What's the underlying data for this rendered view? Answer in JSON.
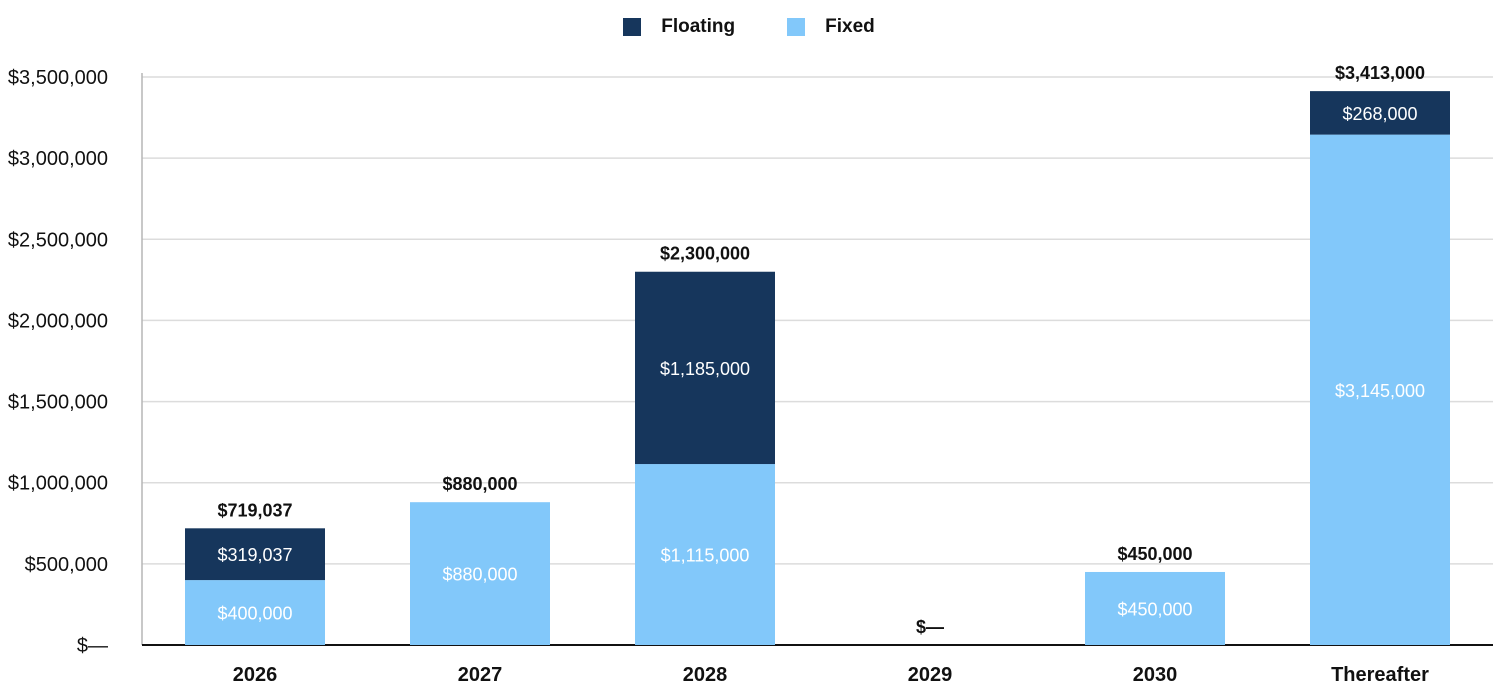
{
  "chart_data": {
    "type": "bar",
    "stacked": true,
    "categories": [
      "2026",
      "2027",
      "2028",
      "2029",
      "2030",
      "Thereafter"
    ],
    "series": [
      {
        "name": "Fixed",
        "color": "#82C8FA",
        "values": [
          400000,
          880000,
          1115000,
          0,
          450000,
          3145000
        ],
        "labels": [
          "$400,000",
          "$880,000",
          "$1,115,000",
          "",
          "$450,000",
          "$3,145,000"
        ]
      },
      {
        "name": "Floating",
        "color": "#16365C",
        "values": [
          319037,
          0,
          1185000,
          0,
          0,
          268000
        ],
        "labels": [
          "$319,037",
          "",
          "$1,185,000",
          "",
          "",
          "$268,000"
        ]
      }
    ],
    "totals": [
      719037,
      880000,
      2300000,
      0,
      450000,
      3413000
    ],
    "total_labels": [
      "$719,037",
      "$880,000",
      "$2,300,000",
      "$—",
      "$450,000",
      "$3,413,000"
    ],
    "ylim": [
      0,
      3500000
    ],
    "yticks": [
      0,
      500000,
      1000000,
      1500000,
      2000000,
      2500000,
      3000000,
      3500000
    ],
    "ytick_labels": [
      "$—",
      "$500,000",
      "$1,000,000",
      "$1,500,000",
      "$2,000,000",
      "$2,500,000",
      "$3,000,000",
      "$3,500,000"
    ],
    "legend": {
      "position": "top-center",
      "entries": [
        "Floating",
        "Fixed"
      ]
    },
    "grid": true
  }
}
